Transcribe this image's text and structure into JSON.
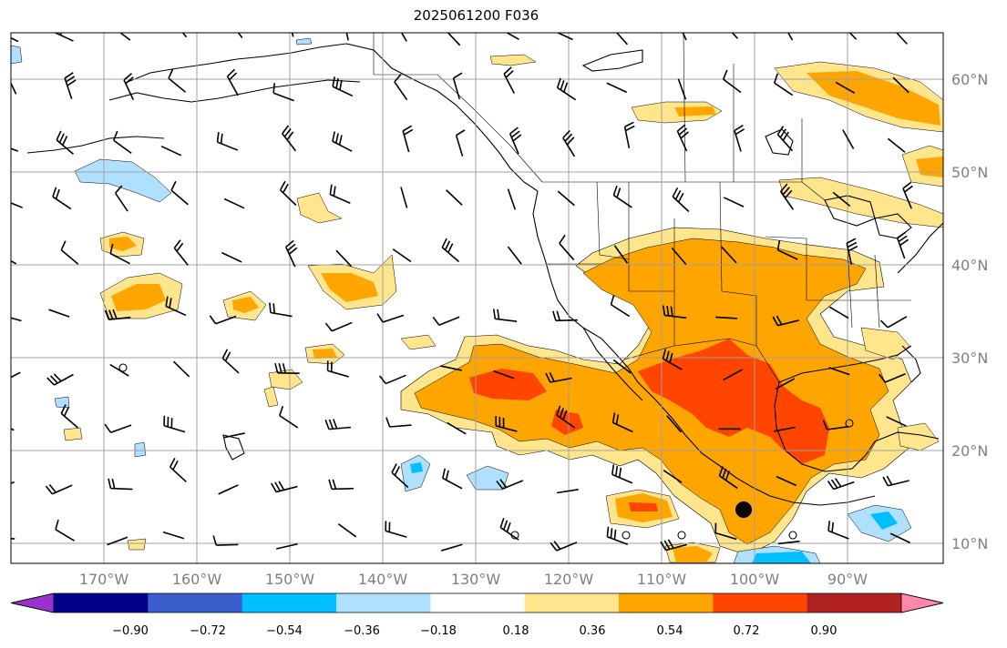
{
  "title": "2025061200 F036",
  "lon_ticks": [
    "170°W",
    "160°W",
    "150°W",
    "140°W",
    "130°W",
    "120°W",
    "110°W",
    "100°W",
    "90°W"
  ],
  "lat_ticks": [
    "60°N",
    "50°N",
    "40°N",
    "30°N",
    "20°N",
    "10°N"
  ],
  "colorbar": {
    "labels": [
      "−0.90",
      "−0.72",
      "−0.54",
      "−0.36",
      "−0.18",
      "0.18",
      "0.36",
      "0.54",
      "0.72",
      "0.90"
    ],
    "colors": [
      "#9932cc",
      "#00008b",
      "#3a5fcd",
      "#00bfff",
      "#b0e0ff",
      "#ffffff",
      "#ffe68c",
      "#ffa500",
      "#ff4500",
      "#b22222",
      "#ff88aa"
    ]
  },
  "field_colors": {
    "weak_pos": "#ffe68c",
    "mod_pos": "#ffa500",
    "strong_pos": "#ff4500",
    "weak_neg": "#b0e0ff",
    "mod_neg": "#00bfff",
    "land_outline": "#000000",
    "grid": "#a0a0a0"
  },
  "marker_icons": [
    "storm-marker-icon",
    "calm-circle-icon",
    "wind-barb-icon"
  ]
}
